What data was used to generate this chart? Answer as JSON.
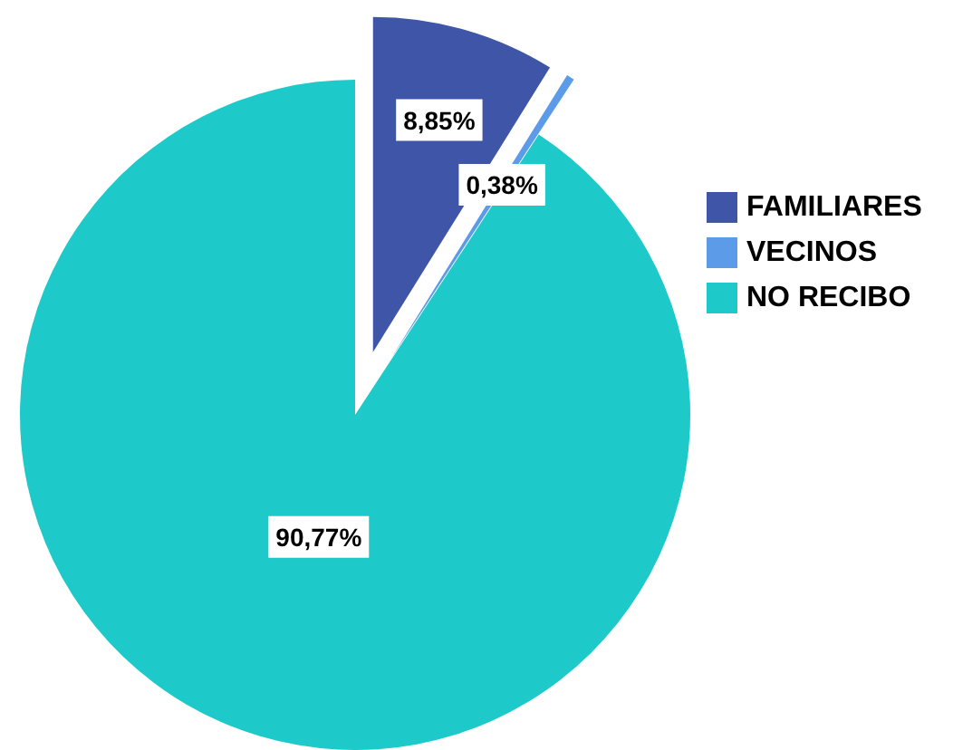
{
  "chart_data": {
    "type": "pie",
    "categories": [
      "FAMILIARES",
      "VECINOS",
      "NO RECIBO"
    ],
    "values": [
      8.85,
      0.38,
      90.77
    ],
    "colors": [
      "#3f55a8",
      "#5b9be8",
      "#1dcac9"
    ],
    "value_labels": [
      "8,85%",
      "0,38%",
      "90,77%"
    ],
    "legend": "right"
  }
}
